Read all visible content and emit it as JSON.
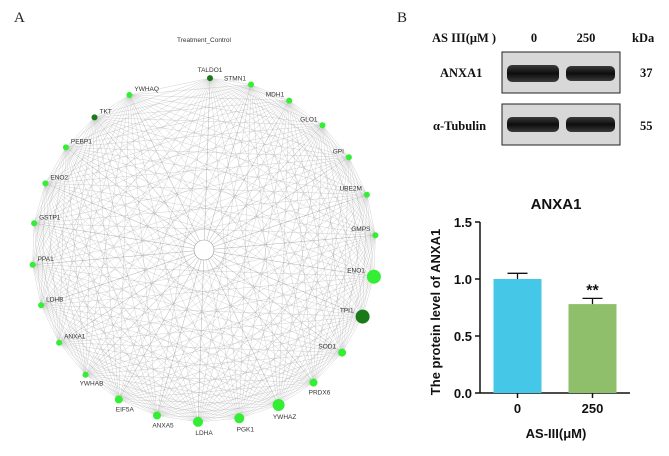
{
  "panels": {
    "a_label": "A",
    "b_label": "B"
  },
  "network": {
    "title": "Treatment_Control",
    "node_color_default": "#33ee33",
    "node_color_highlight": "#1a7a1a",
    "nodes": [
      {
        "name": "TALDO1",
        "size": 3,
        "highlight": true
      },
      {
        "name": "STMN1",
        "size": 3,
        "highlight": false
      },
      {
        "name": "MDH1",
        "size": 3,
        "highlight": false
      },
      {
        "name": "GLO1",
        "size": 3,
        "highlight": false
      },
      {
        "name": "GPI",
        "size": 3,
        "highlight": false
      },
      {
        "name": "UBE2M",
        "size": 3,
        "highlight": false
      },
      {
        "name": "GMPS",
        "size": 3,
        "highlight": false
      },
      {
        "name": "ENO1",
        "size": 7,
        "highlight": false
      },
      {
        "name": "TPI1",
        "size": 7,
        "highlight": true
      },
      {
        "name": "SOD1",
        "size": 4,
        "highlight": false
      },
      {
        "name": "PRDX6",
        "size": 4,
        "highlight": false
      },
      {
        "name": "YWHAZ",
        "size": 6,
        "highlight": false
      },
      {
        "name": "PGK1",
        "size": 5,
        "highlight": false
      },
      {
        "name": "LDHA",
        "size": 5,
        "highlight": false
      },
      {
        "name": "ANXA5",
        "size": 4,
        "highlight": false
      },
      {
        "name": "EIF5A",
        "size": 4,
        "highlight": false
      },
      {
        "name": "YWHAB",
        "size": 3,
        "highlight": false
      },
      {
        "name": "ANXA1",
        "size": 3,
        "highlight": false
      },
      {
        "name": "LDHB",
        "size": 3,
        "highlight": false
      },
      {
        "name": "PPA1",
        "size": 3,
        "highlight": false
      },
      {
        "name": "GSTP1",
        "size": 3,
        "highlight": false
      },
      {
        "name": "ENO2",
        "size": 3,
        "highlight": false
      },
      {
        "name": "PEBP1",
        "size": 3,
        "highlight": false
      },
      {
        "name": "TKT",
        "size": 3,
        "highlight": true
      },
      {
        "name": "YWHAQ",
        "size": 3,
        "highlight": false
      }
    ]
  },
  "western_blot": {
    "header_label": "AS III(μM )",
    "lanes": [
      "0",
      "250"
    ],
    "unit_label": "kDa",
    "rows": [
      {
        "protein": "ANXA1",
        "kda": "37"
      },
      {
        "protein": "α-Tubulin",
        "kda": "55"
      }
    ]
  },
  "chart_data": {
    "type": "bar",
    "title": "ANXA1",
    "ylabel": "The protein level of ANXA1",
    "xlabel": "AS-III(μM)",
    "categories": [
      "0",
      "250"
    ],
    "values": [
      1.0,
      0.78
    ],
    "errors": [
      0.05,
      0.05
    ],
    "colors": [
      "#45c8e8",
      "#8fbf6a"
    ],
    "significance": [
      "",
      "**"
    ],
    "ylim": [
      0.0,
      1.5
    ],
    "yticks": [
      "0.0",
      "0.5",
      "1.0",
      "1.5"
    ],
    "grid": false
  }
}
